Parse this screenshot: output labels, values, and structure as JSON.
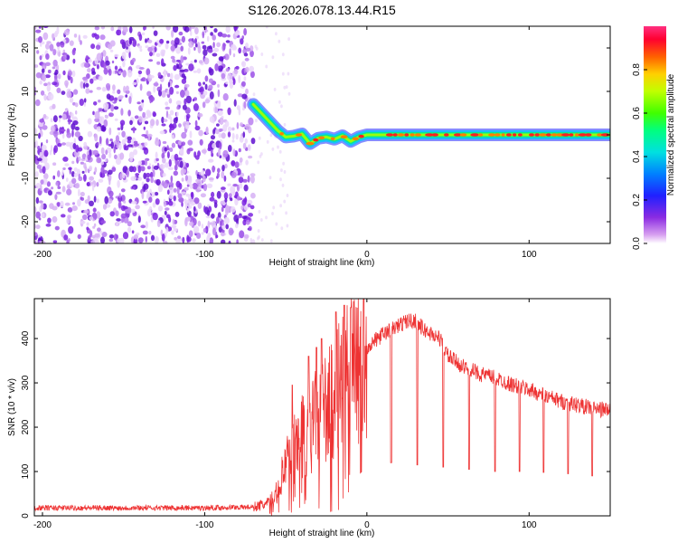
{
  "chart_data": [
    {
      "type": "heatmap",
      "title": "S126.2026.078.13.44.R15",
      "xlabel": "Height of straight line (km)",
      "ylabel": "Frequency (Hz)",
      "xlim": [
        -205,
        150
      ],
      "ylim": [
        -25,
        25
      ],
      "x_ticks": [
        -200,
        -100,
        0,
        100
      ],
      "y_ticks": [
        -20,
        -10,
        0,
        10,
        20
      ],
      "noise_region_x": [
        -205,
        -70
      ],
      "trace": {
        "x": [
          -70,
          -65,
          -60,
          -55,
          -50,
          -45,
          -40,
          -35,
          -30,
          -25,
          -20,
          -15,
          -10,
          -5,
          0,
          10,
          20,
          40,
          60,
          80,
          100,
          120,
          140,
          150
        ],
        "y": [
          7,
          5,
          3,
          1,
          -0.5,
          -0.3,
          0.2,
          -2,
          -0.8,
          -0.5,
          -1,
          -0.2,
          -1.5,
          -0.5,
          0,
          0,
          0,
          0,
          0,
          0,
          0,
          0,
          0,
          0
        ]
      },
      "colorbar": {
        "label": "Normalized spectral amplitude",
        "range": [
          0.0,
          1.0
        ],
        "ticks": [
          "0.0",
          "0.2",
          "0.4",
          "0.6",
          "0.8"
        ],
        "colormap": "hsv-violet-to-red"
      }
    },
    {
      "type": "line",
      "xlabel": "Height of straight line (km)",
      "ylabel": "SNR (10 * v/v)",
      "xlim": [
        -205,
        150
      ],
      "ylim": [
        0,
        490
      ],
      "x_ticks": [
        -200,
        -100,
        0,
        100
      ],
      "y_ticks": [
        0,
        100,
        200,
        300,
        400
      ],
      "series": [
        {
          "name": "SNR",
          "color": "#ee3333",
          "envelope_x": [
            -205,
            -150,
            -100,
            -70,
            -60,
            -55,
            -50,
            -45,
            -40,
            -35,
            -30,
            -25,
            -20,
            -15,
            -10,
            -5,
            0,
            10,
            20,
            25,
            30,
            35,
            40,
            45,
            50,
            60,
            70,
            80,
            90,
            100,
            110,
            120,
            130,
            140,
            150
          ],
          "envelope_y": [
            18,
            18,
            18,
            20,
            28,
            60,
            110,
            150,
            180,
            200,
            220,
            240,
            270,
            290,
            330,
            360,
            380,
            410,
            430,
            440,
            440,
            420,
            410,
            400,
            360,
            335,
            320,
            310,
            295,
            285,
            270,
            258,
            250,
            242,
            238
          ],
          "dips_x": [
            15,
            31,
            47,
            63,
            79,
            94,
            109,
            124,
            139
          ],
          "dips_y": [
            120,
            115,
            110,
            105,
            100,
            100,
            98,
            95,
            90
          ],
          "spikes_x": [
            -46,
            -36,
            -31,
            -28,
            -19,
            -14,
            -10
          ],
          "spikes_y": [
            295,
            360,
            380,
            400,
            460,
            475,
            470
          ]
        }
      ]
    }
  ]
}
